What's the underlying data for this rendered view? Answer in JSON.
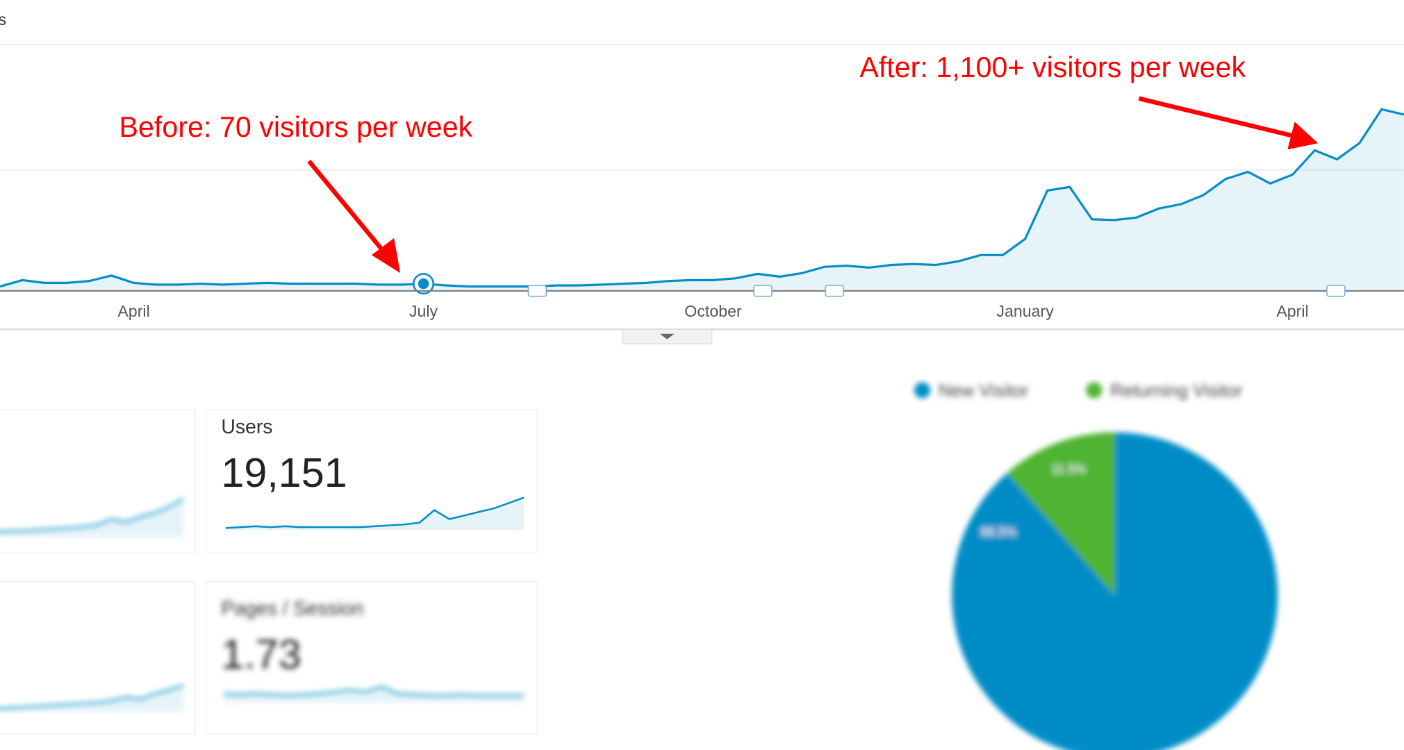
{
  "header": {
    "label": "s"
  },
  "annotations": {
    "before": "Before: 70 visitors per week",
    "after": "After: 1,100+ visitors per week"
  },
  "chart_data": [
    {
      "type": "area",
      "color": "#058dc7",
      "ylim": [
        0,
        2000
      ],
      "categories": [
        null,
        null,
        null,
        null,
        null,
        null,
        "April",
        null,
        null,
        null,
        null,
        null,
        null,
        null,
        null,
        null,
        null,
        null,
        null,
        "July",
        null,
        null,
        null,
        null,
        null,
        null,
        null,
        null,
        null,
        null,
        null,
        null,
        "October",
        null,
        null,
        null,
        null,
        null,
        null,
        null,
        null,
        null,
        null,
        null,
        null,
        null,
        "January",
        null,
        null,
        null,
        null,
        null,
        null,
        null,
        null,
        null,
        null,
        null,
        "April",
        null,
        null,
        null,
        null,
        null
      ],
      "values": [
        36,
        87,
        65,
        65,
        80,
        124,
        65,
        51,
        51,
        58,
        51,
        58,
        65,
        58,
        58,
        58,
        58,
        51,
        51,
        58,
        44,
        36,
        36,
        36,
        36,
        44,
        44,
        51,
        58,
        65,
        80,
        87,
        87,
        102,
        138,
        116,
        145,
        196,
        204,
        189,
        211,
        218,
        211,
        240,
        291,
        291,
        422,
        815,
        844,
        582,
        575,
        596,
        669,
        705,
        778,
        909,
        967,
        873,
        945,
        1142,
        1069,
        1200,
        1476,
        1433
      ]
    },
    {
      "type": "sparkline",
      "color": "#058dc7",
      "ylim": [
        0,
        40
      ],
      "blur": true,
      "values": [
        5,
        6,
        6,
        7,
        8,
        9,
        10,
        12,
        18,
        15,
        20,
        24,
        30,
        38
      ]
    },
    {
      "type": "sparkline",
      "color": "#058dc7",
      "ylim": [
        0,
        40
      ],
      "title": "Users",
      "metric": "19,151",
      "values": [
        2,
        3,
        4,
        3,
        4,
        3,
        3,
        3,
        3,
        3,
        4,
        5,
        6,
        8,
        22,
        12,
        16,
        20,
        24,
        30,
        36
      ]
    },
    {
      "type": "sparkline",
      "color": "#058dc7",
      "ylim": [
        0,
        40
      ],
      "blur": true,
      "values": [
        3,
        4,
        5,
        6,
        7,
        8,
        9,
        10,
        12,
        16,
        14,
        20,
        24,
        30
      ]
    },
    {
      "type": "sparkline",
      "color": "#058dc7",
      "ylim": [
        0,
        40
      ],
      "blur": true,
      "title": "Pages / Session",
      "metric": "1.73",
      "values": [
        10,
        9,
        10,
        9,
        8,
        9,
        10,
        12,
        14,
        12,
        18,
        10,
        9,
        8,
        8,
        9,
        8,
        8,
        8,
        8
      ]
    },
    {
      "type": "pie",
      "blur": true,
      "series": [
        {
          "name": "New Visitor",
          "color": "#058dc7"
        },
        {
          "name": "Returning Visitor",
          "color": "#50b432"
        }
      ],
      "values": [
        88.5,
        11.5
      ],
      "value_labels": [
        "88.5%",
        "11.5%"
      ]
    }
  ]
}
